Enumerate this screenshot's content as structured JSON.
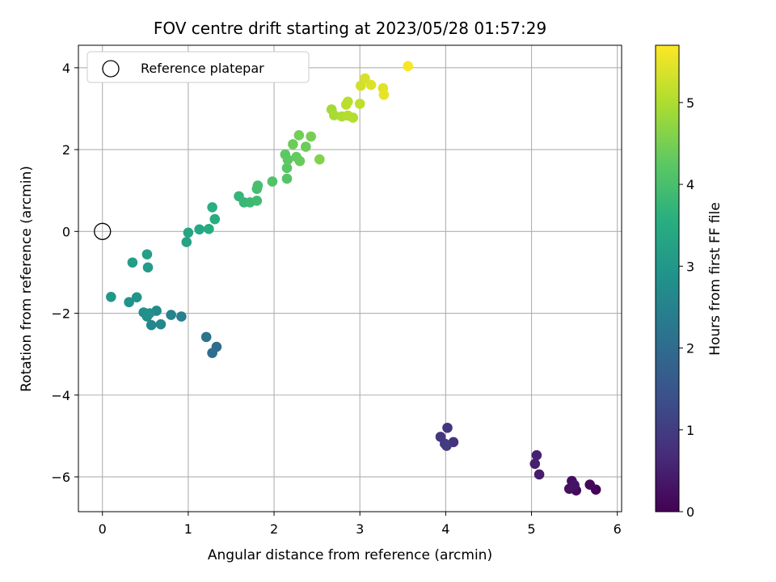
{
  "chart_data": {
    "type": "scatter",
    "title": "FOV centre drift starting at 2023/05/28 01:57:29",
    "xlabel": "Angular distance from reference (arcmin)",
    "ylabel": "Rotation from reference (arcmin)",
    "xlim": [
      -0.28,
      6.05
    ],
    "ylim": [
      -6.85,
      4.55
    ],
    "xticks": [
      0,
      1,
      2,
      3,
      4,
      5,
      6
    ],
    "yticks": [
      -6,
      -4,
      -2,
      0,
      2,
      4
    ],
    "xtick_labels": [
      "0",
      "1",
      "2",
      "3",
      "4",
      "5",
      "6"
    ],
    "ytick_labels": [
      "−6",
      "−4",
      "−2",
      "0",
      "2",
      "4"
    ],
    "grid": true,
    "legend": {
      "placement": "top-left",
      "entries": [
        {
          "label": "Reference platepar",
          "marker": "open-circle"
        }
      ]
    },
    "reference_point": {
      "x": 0,
      "y": 0
    },
    "colormap": "viridis",
    "colorbar": {
      "label": "Hours from first FF file",
      "range": [
        0,
        5.7
      ],
      "ticks": [
        0,
        1,
        2,
        3,
        4,
        5
      ],
      "tick_labels": [
        "0",
        "1",
        "2",
        "3",
        "4",
        "5"
      ]
    },
    "points": [
      {
        "x": 5.75,
        "y": -6.31,
        "c": 0.05
      },
      {
        "x": 5.68,
        "y": -6.19,
        "c": 0.1
      },
      {
        "x": 5.52,
        "y": -6.33,
        "c": 0.15
      },
      {
        "x": 5.47,
        "y": -6.1,
        "c": 0.2
      },
      {
        "x": 5.44,
        "y": -6.29,
        "c": 0.25
      },
      {
        "x": 5.5,
        "y": -6.2,
        "c": 0.3
      },
      {
        "x": 5.09,
        "y": -5.94,
        "c": 0.45
      },
      {
        "x": 5.04,
        "y": -5.68,
        "c": 0.5
      },
      {
        "x": 5.06,
        "y": -5.47,
        "c": 0.55
      },
      {
        "x": 4.09,
        "y": -5.15,
        "c": 0.8
      },
      {
        "x": 4.02,
        "y": -4.8,
        "c": 0.85
      },
      {
        "x": 3.94,
        "y": -5.02,
        "c": 0.9
      },
      {
        "x": 3.99,
        "y": -5.19,
        "c": 0.95
      },
      {
        "x": 4.01,
        "y": -5.24,
        "c": 1.0
      },
      {
        "x": 1.33,
        "y": -2.82,
        "c": 2.0
      },
      {
        "x": 1.28,
        "y": -2.97,
        "c": 2.05
      },
      {
        "x": 1.21,
        "y": -2.58,
        "c": 2.15
      },
      {
        "x": 0.92,
        "y": -2.08,
        "c": 2.45
      },
      {
        "x": 0.8,
        "y": -2.04,
        "c": 2.5
      },
      {
        "x": 0.57,
        "y": -2.29,
        "c": 2.6
      },
      {
        "x": 0.68,
        "y": -2.27,
        "c": 2.65
      },
      {
        "x": 0.63,
        "y": -1.94,
        "c": 2.7
      },
      {
        "x": 0.52,
        "y": -2.08,
        "c": 2.75
      },
      {
        "x": 0.48,
        "y": -1.98,
        "c": 2.8
      },
      {
        "x": 0.55,
        "y": -2.0,
        "c": 2.85
      },
      {
        "x": 0.31,
        "y": -1.73,
        "c": 2.9
      },
      {
        "x": 0.4,
        "y": -1.61,
        "c": 2.95
      },
      {
        "x": 0.1,
        "y": -1.6,
        "c": 3.0
      },
      {
        "x": 0.53,
        "y": -0.88,
        "c": 3.1
      },
      {
        "x": 0.35,
        "y": -0.76,
        "c": 3.15
      },
      {
        "x": 0.52,
        "y": -0.56,
        "c": 3.2
      },
      {
        "x": 0.98,
        "y": -0.26,
        "c": 3.3
      },
      {
        "x": 1.0,
        "y": -0.03,
        "c": 3.35
      },
      {
        "x": 1.13,
        "y": 0.05,
        "c": 3.4
      },
      {
        "x": 1.24,
        "y": 0.06,
        "c": 3.5
      },
      {
        "x": 1.31,
        "y": 0.3,
        "c": 3.55
      },
      {
        "x": 1.28,
        "y": 0.59,
        "c": 3.6
      },
      {
        "x": 1.59,
        "y": 0.86,
        "c": 3.75
      },
      {
        "x": 1.65,
        "y": 0.71,
        "c": 3.8
      },
      {
        "x": 1.72,
        "y": 0.71,
        "c": 3.85
      },
      {
        "x": 1.8,
        "y": 0.75,
        "c": 3.9
      },
      {
        "x": 1.8,
        "y": 1.04,
        "c": 3.95
      },
      {
        "x": 1.81,
        "y": 1.12,
        "c": 4.0
      },
      {
        "x": 1.98,
        "y": 1.22,
        "c": 4.1
      },
      {
        "x": 2.15,
        "y": 1.29,
        "c": 4.15
      },
      {
        "x": 2.15,
        "y": 1.55,
        "c": 4.2
      },
      {
        "x": 2.16,
        "y": 1.75,
        "c": 4.25
      },
      {
        "x": 2.13,
        "y": 1.88,
        "c": 4.25
      },
      {
        "x": 2.26,
        "y": 1.82,
        "c": 4.3
      },
      {
        "x": 2.3,
        "y": 1.72,
        "c": 4.35
      },
      {
        "x": 2.22,
        "y": 2.13,
        "c": 4.4
      },
      {
        "x": 2.37,
        "y": 2.07,
        "c": 4.4
      },
      {
        "x": 2.29,
        "y": 2.35,
        "c": 4.45
      },
      {
        "x": 2.43,
        "y": 2.32,
        "c": 4.5
      },
      {
        "x": 2.53,
        "y": 1.76,
        "c": 4.6
      },
      {
        "x": 2.67,
        "y": 2.98,
        "c": 4.9
      },
      {
        "x": 2.7,
        "y": 2.84,
        "c": 4.95
      },
      {
        "x": 2.79,
        "y": 2.81,
        "c": 5.0
      },
      {
        "x": 2.86,
        "y": 2.83,
        "c": 5.05
      },
      {
        "x": 2.92,
        "y": 2.78,
        "c": 5.05
      },
      {
        "x": 2.84,
        "y": 3.1,
        "c": 5.1
      },
      {
        "x": 2.86,
        "y": 3.17,
        "c": 5.1
      },
      {
        "x": 3.0,
        "y": 3.12,
        "c": 5.15
      },
      {
        "x": 3.01,
        "y": 3.56,
        "c": 5.3
      },
      {
        "x": 3.06,
        "y": 3.74,
        "c": 5.35
      },
      {
        "x": 3.13,
        "y": 3.58,
        "c": 5.4
      },
      {
        "x": 3.27,
        "y": 3.5,
        "c": 5.45
      },
      {
        "x": 3.28,
        "y": 3.34,
        "c": 5.5
      },
      {
        "x": 3.56,
        "y": 4.04,
        "c": 5.65
      }
    ]
  }
}
